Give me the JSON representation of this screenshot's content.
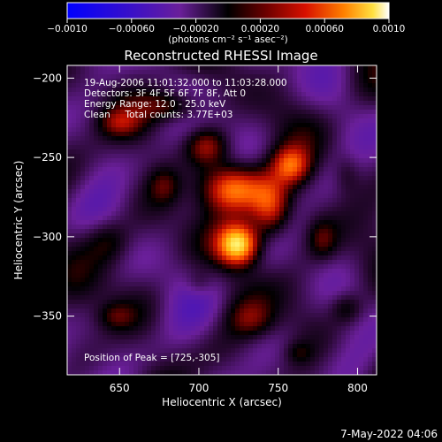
{
  "chart_data": {
    "type": "heatmap",
    "title": "Reconstructed RHESSI Image",
    "xlabel": "Heliocentric X (arcsec)",
    "ylabel": "Heliocentric Y (arcsec)",
    "xlim": [
      617,
      812
    ],
    "ylim": [
      -387,
      -192
    ],
    "x_ticks": [
      650,
      700,
      750,
      800
    ],
    "y_ticks": [
      -200,
      -250,
      -300,
      -350
    ],
    "colorbar": {
      "range": [
        -0.001,
        0.001
      ],
      "tick_values": [
        -0.001,
        -0.0006,
        -0.0002,
        0.0002,
        0.0006,
        0.001
      ],
      "tick_labels": [
        "-0.0010",
        "-0.00060",
        "-0.00020",
        "0.00020",
        "0.00060",
        "0.0010"
      ],
      "label": "(photons cm⁻² s⁻¹ asec⁻²)"
    },
    "annotations": [
      "19-Aug-2006 11:01:32.000 to 11:03:28.000",
      "Detectors: 3F 4F 5F 6F 7F 8F, Att 0",
      "Energy Range: 12.0 - 25.0 keV",
      "Clean     Total counts: 3.77E+03"
    ],
    "peak_label": "Position of Peak = [725,-305]",
    "peak": [
      725,
      -305
    ],
    "sources": [
      {
        "x": 725,
        "y": -305,
        "amp": 0.00105,
        "sx": 9,
        "sy": 9
      },
      {
        "x": 722,
        "y": -270,
        "amp": 0.00072,
        "sx": 13,
        "sy": 10
      },
      {
        "x": 745,
        "y": -282,
        "amp": 0.00065,
        "sx": 9,
        "sy": 14
      },
      {
        "x": 758,
        "y": -255,
        "amp": 0.00055,
        "sx": 8,
        "sy": 8
      },
      {
        "x": 705,
        "y": -243,
        "amp": 0.00042,
        "sx": 9,
        "sy": 8
      },
      {
        "x": 683,
        "y": -218,
        "amp": 0.00036,
        "sx": 14,
        "sy": 7
      },
      {
        "x": 650,
        "y": -228,
        "amp": 0.00028,
        "sx": 9,
        "sy": 6
      },
      {
        "x": 643,
        "y": -303,
        "amp": 0.00026,
        "sx": 10,
        "sy": 10
      },
      {
        "x": 678,
        "y": -268,
        "amp": 0.00024,
        "sx": 7,
        "sy": 8
      },
      {
        "x": 648,
        "y": -350,
        "amp": 0.00022,
        "sx": 8,
        "sy": 6
      },
      {
        "x": 733,
        "y": -352,
        "amp": 0.00026,
        "sx": 10,
        "sy": 8
      },
      {
        "x": 793,
        "y": -345,
        "amp": 0.00024,
        "sx": 7,
        "sy": 7
      },
      {
        "x": 778,
        "y": -302,
        "amp": 0.00022,
        "sx": 6,
        "sy": 8
      },
      {
        "x": 793,
        "y": -260,
        "amp": 0.00017,
        "sx": 6,
        "sy": 9
      },
      {
        "x": 763,
        "y": -373,
        "amp": 0.00016,
        "sx": 6,
        "sy": 5
      },
      {
        "x": 700,
        "y": -330,
        "amp": 0.00015,
        "sx": 6,
        "sy": 6
      }
    ]
  },
  "footer": {
    "date": "7-May-2022 04:06"
  }
}
